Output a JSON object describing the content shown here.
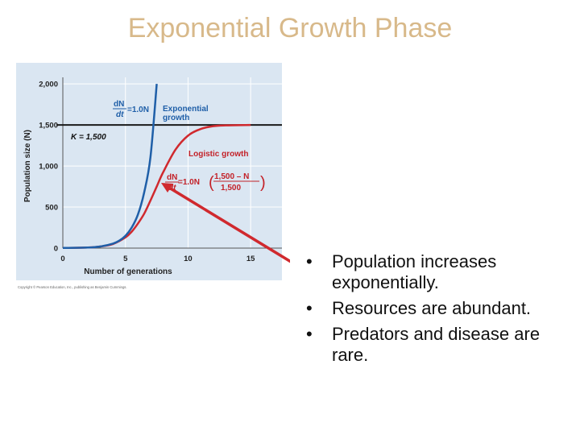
{
  "slide": {
    "title": "Exponential Growth Phase",
    "bullets": [
      "Population increases exponentially.",
      "Resources are abundant.",
      "Predators and disease are rare."
    ]
  },
  "colors": {
    "title": "#d8b98a",
    "plot_bg": "#dae6f2",
    "exponential": "#1f5fa8",
    "logistic": "#d0292e",
    "carrying_capacity": "#1a1a1a",
    "arrow": "#d0292e",
    "annotation_blue": "#1f5fa8",
    "annotation_red": "#c32128"
  },
  "chart_data": {
    "type": "line",
    "title": "",
    "xlabel": "Number of generations",
    "ylabel": "Population size (N)",
    "xlim": [
      0,
      17.5
    ],
    "ylim": [
      0,
      2080
    ],
    "xticks": [
      0,
      5,
      10,
      15
    ],
    "yticks": [
      0,
      500,
      1000,
      1500,
      2000
    ],
    "ytick_labels": [
      "0",
      "500",
      "1,000",
      "1,500",
      "2,000"
    ],
    "grid": true,
    "series": [
      {
        "name": "Exponential growth",
        "x": [
          0,
          2,
          3,
          4,
          4.5,
          5,
          5.5,
          6,
          6.5,
          7,
          7.5
        ],
        "y": [
          2,
          7,
          20,
          55,
          90,
          150,
          250,
          410,
          680,
          1110,
          2000
        ]
      },
      {
        "name": "Logistic growth",
        "x": [
          0,
          2,
          3,
          4,
          5,
          5.5,
          6,
          6.5,
          7,
          7.5,
          8,
          9,
          10,
          11,
          12,
          13,
          15
        ],
        "y": [
          2,
          7,
          20,
          50,
          130,
          200,
          300,
          420,
          580,
          750,
          920,
          1200,
          1370,
          1450,
          1485,
          1495,
          1500
        ]
      }
    ],
    "reference_line": {
      "label": "K = 1,500",
      "y": 1500
    },
    "annotations": {
      "exponential_equation_lhs_num": "dN",
      "exponential_equation_lhs_den": "dt",
      "exponential_equation_rhs": "=1.0N",
      "exponential_label_line1": "Exponential",
      "exponential_label_line2": "growth",
      "logistic_label": "Logistic growth",
      "logistic_equation_lhs_num": "dN",
      "logistic_equation_lhs_den": "dt",
      "logistic_equation_rhs": "=1.0N",
      "logistic_fraction_num": "1,500 – N",
      "logistic_fraction_den": "1,500"
    },
    "copyright": "Copyright © Pearson Education, Inc., publishing as Benjamin Cummings.",
    "arrow_target": {
      "x": 7.3,
      "y": 800
    }
  }
}
